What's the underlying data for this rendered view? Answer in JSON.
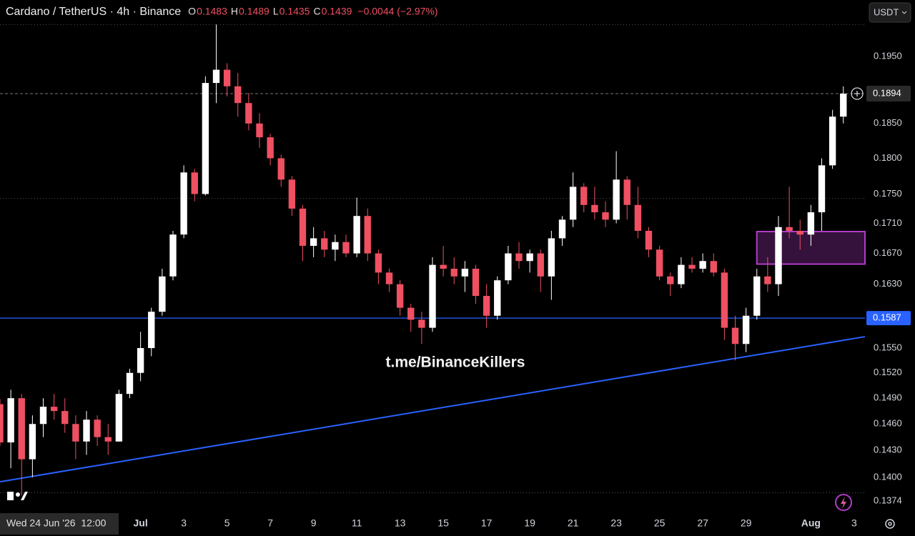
{
  "chart_data": {
    "type": "candlestick",
    "title": "Cardano / TetherUS · 4h · Binance",
    "ohlc_legend": [
      {
        "label": "O",
        "value": "0.1483"
      },
      {
        "label": "H",
        "value": "0.1489"
      },
      {
        "label": "L",
        "value": "0.1435"
      },
      {
        "label": "C",
        "value": "0.1439"
      }
    ],
    "change": "−0.0044 (−2.97%)",
    "currency": "USDT",
    "watermark": "t.me/BinanceKillers",
    "crosshair_time": "Wed 24 Jun '26  12:00",
    "log_scale": true,
    "up_color": "#ffffff",
    "down_color": "#ef5062",
    "xlim": [
      "2026-06-24T12:00",
      "2026-08-03T12:00"
    ],
    "ylim": [
      0.1361,
      0.2039
    ],
    "xticks": [
      {
        "value": "2026-07-01T00:00",
        "label": "Jul"
      },
      {
        "value": "2026-07-03T00:00",
        "label": "3"
      },
      {
        "value": "2026-07-05T00:00",
        "label": "5"
      },
      {
        "value": "2026-07-07T00:00",
        "label": "7"
      },
      {
        "value": "2026-07-09T00:00",
        "label": "9"
      },
      {
        "value": "2026-07-11T00:00",
        "label": "11"
      },
      {
        "value": "2026-07-13T00:00",
        "label": "13"
      },
      {
        "value": "2026-07-15T00:00",
        "label": "15"
      },
      {
        "value": "2026-07-17T00:00",
        "label": "17"
      },
      {
        "value": "2026-07-19T00:00",
        "label": "19"
      },
      {
        "value": "2026-07-21T00:00",
        "label": "21"
      },
      {
        "value": "2026-07-23T00:00",
        "label": "23"
      },
      {
        "value": "2026-07-25T00:00",
        "label": "25"
      },
      {
        "value": "2026-07-27T00:00",
        "label": "27"
      },
      {
        "value": "2026-07-29T00:00",
        "label": "29"
      },
      {
        "value": "2026-08-01T00:00",
        "label": "Aug"
      },
      {
        "value": "2026-08-03T00:00",
        "label": "3"
      }
    ],
    "yticks": [
      {
        "value": 0.195,
        "label": "0.1950"
      },
      {
        "value": 0.185,
        "label": "0.1850"
      },
      {
        "value": 0.18,
        "label": "0.1800"
      },
      {
        "value": 0.175,
        "label": "0.1750"
      },
      {
        "value": 0.171,
        "label": "0.1710"
      },
      {
        "value": 0.167,
        "label": "0.1670"
      },
      {
        "value": 0.163,
        "label": "0.1630"
      },
      {
        "value": 0.155,
        "label": "0.1550"
      },
      {
        "value": 0.152,
        "label": "0.1520"
      },
      {
        "value": 0.149,
        "label": "0.1490"
      },
      {
        "value": 0.146,
        "label": "0.1460"
      },
      {
        "value": 0.143,
        "label": "0.1430"
      },
      {
        "value": 0.14,
        "label": "0.1400"
      },
      {
        "value": 0.1374,
        "label": "0.1374"
      }
    ],
    "price_line": {
      "value": 0.1894,
      "label": "0.1894"
    },
    "support_line": {
      "value": 0.1587,
      "label": "0.1587",
      "color": "#2962ff"
    },
    "dotted_levels": [
      0.2,
      0.1744,
      0.1383
    ],
    "trendline": {
      "x": [
        "2026-06-24T12:00",
        "2026-08-03T12:00"
      ],
      "y": [
        0.1395,
        0.1564
      ],
      "color": "#2962ff"
    },
    "zone": {
      "x": [
        "2026-07-29T12:00",
        "2026-08-03T12:00"
      ],
      "y": [
        0.1656,
        0.1699
      ],
      "color": "#b03cc8"
    },
    "x": [
      "2026-06-24T12:00",
      "2026-06-25T00:00",
      "2026-06-25T12:00",
      "2026-06-26T00:00",
      "2026-06-26T12:00",
      "2026-06-27T00:00",
      "2026-06-27T12:00",
      "2026-06-28T00:00",
      "2026-06-28T12:00",
      "2026-06-29T00:00",
      "2026-06-29T12:00",
      "2026-06-30T00:00",
      "2026-06-30T12:00",
      "2026-07-01T00:00",
      "2026-07-01T12:00",
      "2026-07-02T00:00",
      "2026-07-02T12:00",
      "2026-07-03T00:00",
      "2026-07-03T12:00",
      "2026-07-04T00:00",
      "2026-07-04T12:00",
      "2026-07-05T00:00",
      "2026-07-05T12:00",
      "2026-07-06T00:00",
      "2026-07-06T12:00",
      "2026-07-07T00:00",
      "2026-07-07T12:00",
      "2026-07-08T00:00",
      "2026-07-08T12:00",
      "2026-07-09T00:00",
      "2026-07-09T12:00",
      "2026-07-10T00:00",
      "2026-07-10T12:00",
      "2026-07-11T00:00",
      "2026-07-11T12:00",
      "2026-07-12T00:00",
      "2026-07-12T12:00",
      "2026-07-13T00:00",
      "2026-07-13T12:00",
      "2026-07-14T00:00",
      "2026-07-14T12:00",
      "2026-07-15T00:00",
      "2026-07-15T12:00",
      "2026-07-16T00:00",
      "2026-07-16T12:00",
      "2026-07-17T00:00",
      "2026-07-17T12:00",
      "2026-07-18T00:00",
      "2026-07-18T12:00",
      "2026-07-19T00:00",
      "2026-07-19T12:00",
      "2026-07-20T00:00",
      "2026-07-20T12:00",
      "2026-07-21T00:00",
      "2026-07-21T12:00",
      "2026-07-22T00:00",
      "2026-07-22T12:00",
      "2026-07-23T00:00",
      "2026-07-23T12:00",
      "2026-07-24T00:00",
      "2026-07-24T12:00",
      "2026-07-25T00:00",
      "2026-07-25T12:00",
      "2026-07-26T00:00",
      "2026-07-26T12:00",
      "2026-07-27T00:00",
      "2026-07-27T12:00",
      "2026-07-28T00:00",
      "2026-07-28T12:00",
      "2026-07-29T00:00",
      "2026-07-29T12:00",
      "2026-07-30T00:00",
      "2026-07-30T12:00",
      "2026-07-31T00:00",
      "2026-07-31T12:00",
      "2026-08-01T00:00",
      "2026-08-01T12:00",
      "2026-08-02T00:00",
      "2026-08-02T12:00"
    ],
    "open": [
      0.1483,
      0.1439,
      0.149,
      0.142,
      0.146,
      0.148,
      0.1475,
      0.146,
      0.144,
      0.1465,
      0.1445,
      0.144,
      0.1495,
      0.152,
      0.155,
      0.1595,
      0.164,
      0.1695,
      0.178,
      0.175,
      0.191,
      0.193,
      0.1905,
      0.188,
      0.185,
      0.183,
      0.18,
      0.177,
      0.173,
      0.168,
      0.169,
      0.1675,
      0.1685,
      0.167,
      0.172,
      0.167,
      0.1645,
      0.163,
      0.16,
      0.1585,
      0.1575,
      0.1655,
      0.165,
      0.164,
      0.165,
      0.1615,
      0.159,
      0.1635,
      0.167,
      0.166,
      0.167,
      0.164,
      0.169,
      0.1715,
      0.176,
      0.1735,
      0.1725,
      0.1715,
      0.177,
      0.1735,
      0.17,
      0.1675,
      0.164,
      0.163,
      0.1655,
      0.165,
      0.166,
      0.1645,
      0.1575,
      0.1555,
      0.159,
      0.164,
      0.163,
      0.1705,
      0.17,
      0.1695,
      0.1725,
      0.179,
      0.186
    ],
    "high": [
      0.1489,
      0.15,
      0.1495,
      0.147,
      0.149,
      0.1495,
      0.149,
      0.147,
      0.1475,
      0.147,
      0.146,
      0.15,
      0.1525,
      0.157,
      0.16,
      0.165,
      0.17,
      0.179,
      0.1785,
      0.192,
      0.2,
      0.194,
      0.1925,
      0.1895,
      0.1865,
      0.1835,
      0.1805,
      0.1775,
      0.1735,
      0.1705,
      0.17,
      0.1695,
      0.1695,
      0.1745,
      0.173,
      0.1675,
      0.165,
      0.1635,
      0.1605,
      0.1595,
      0.1665,
      0.168,
      0.1665,
      0.166,
      0.1655,
      0.163,
      0.164,
      0.168,
      0.1685,
      0.1675,
      0.1675,
      0.17,
      0.172,
      0.178,
      0.1765,
      0.176,
      0.174,
      0.181,
      0.1775,
      0.176,
      0.1705,
      0.168,
      0.1645,
      0.1665,
      0.1665,
      0.167,
      0.167,
      0.165,
      0.159,
      0.16,
      0.165,
      0.1665,
      0.172,
      0.176,
      0.1715,
      0.1735,
      0.18,
      0.187,
      0.1905
    ],
    "low": [
      0.1435,
      0.141,
      0.138,
      0.14,
      0.1445,
      0.1465,
      0.145,
      0.142,
      0.1425,
      0.1435,
      0.1425,
      0.144,
      0.149,
      0.151,
      0.154,
      0.159,
      0.1635,
      0.169,
      0.174,
      0.1748,
      0.188,
      0.189,
      0.186,
      0.184,
      0.1815,
      0.179,
      0.176,
      0.172,
      0.166,
      0.1665,
      0.1665,
      0.166,
      0.1665,
      0.1665,
      0.166,
      0.163,
      0.162,
      0.159,
      0.157,
      0.1555,
      0.157,
      0.164,
      0.163,
      0.162,
      0.1605,
      0.1575,
      0.1585,
      0.163,
      0.165,
      0.1645,
      0.162,
      0.161,
      0.168,
      0.1705,
      0.1725,
      0.1715,
      0.1705,
      0.171,
      0.1715,
      0.169,
      0.1665,
      0.1635,
      0.1615,
      0.1625,
      0.1645,
      0.1645,
      0.164,
      0.156,
      0.1535,
      0.1545,
      0.1585,
      0.162,
      0.1615,
      0.169,
      0.1675,
      0.168,
      0.17,
      0.1785,
      0.185
    ],
    "close": [
      0.1439,
      0.149,
      0.142,
      0.146,
      0.148,
      0.1475,
      0.146,
      0.144,
      0.1465,
      0.1445,
      0.144,
      0.1495,
      0.152,
      0.155,
      0.1595,
      0.164,
      0.1695,
      0.178,
      0.175,
      0.191,
      0.193,
      0.1905,
      0.188,
      0.185,
      0.183,
      0.18,
      0.177,
      0.173,
      0.168,
      0.169,
      0.1675,
      0.1685,
      0.167,
      0.172,
      0.167,
      0.1645,
      0.163,
      0.16,
      0.1585,
      0.1575,
      0.1655,
      0.165,
      0.164,
      0.165,
      0.1615,
      0.159,
      0.1635,
      0.167,
      0.166,
      0.167,
      0.164,
      0.169,
      0.1715,
      0.176,
      0.1735,
      0.1725,
      0.1715,
      0.177,
      0.1735,
      0.17,
      0.1675,
      0.164,
      0.163,
      0.1655,
      0.165,
      0.166,
      0.1645,
      0.1575,
      0.1555,
      0.159,
      0.164,
      0.163,
      0.1705,
      0.17,
      0.1695,
      0.1725,
      0.179,
      0.186,
      0.1894
    ]
  }
}
